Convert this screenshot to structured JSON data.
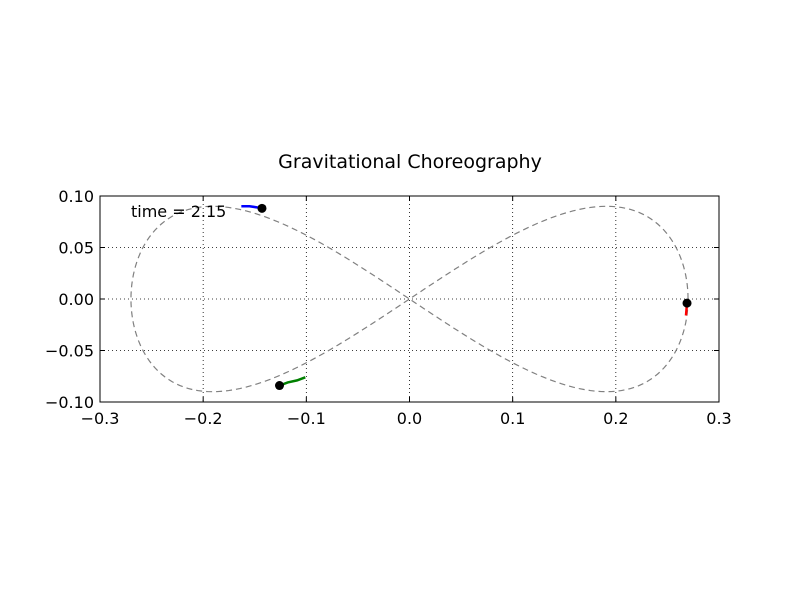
{
  "chart_data": {
    "type": "line",
    "title": "Gravitational Choreography",
    "xlabel": "",
    "ylabel": "",
    "xlim": [
      -0.3,
      0.3
    ],
    "ylim": [
      -0.1,
      0.1
    ],
    "xticks": [
      -0.3,
      -0.2,
      -0.1,
      0.0,
      0.1,
      0.2,
      0.3
    ],
    "xtick_labels": [
      "−0.3",
      "−0.2",
      "−0.1",
      "0.0",
      "0.1",
      "0.2",
      "0.3"
    ],
    "yticks": [
      0.1,
      0.05,
      0.0,
      -0.05,
      -0.1
    ],
    "ytick_labels": [
      "0.10",
      "0.05",
      "0.00",
      "−0.05",
      "−0.10"
    ],
    "grid": true,
    "annotation": "time = 2.15",
    "orbit": {
      "style": "dashed",
      "color": "#808080",
      "x_extent": 0.27,
      "y_extent": 0.09
    },
    "bodies": [
      {
        "color": "#0000ff",
        "x": -0.143,
        "y": 0.088,
        "trail_x": [
          -0.163,
          -0.155,
          -0.148,
          -0.143
        ],
        "trail_y": [
          0.09,
          0.09,
          0.089,
          0.088
        ]
      },
      {
        "color": "#008000",
        "x": -0.126,
        "y": -0.084,
        "trail_x": [
          -0.101,
          -0.109,
          -0.118,
          -0.126
        ],
        "trail_y": [
          -0.076,
          -0.079,
          -0.081,
          -0.084
        ]
      },
      {
        "color": "#ff0000",
        "x": 0.269,
        "y": -0.004,
        "trail_x": [
          0.268,
          0.2685,
          0.269
        ],
        "trail_y": [
          -0.016,
          -0.01,
          -0.004
        ]
      }
    ]
  }
}
